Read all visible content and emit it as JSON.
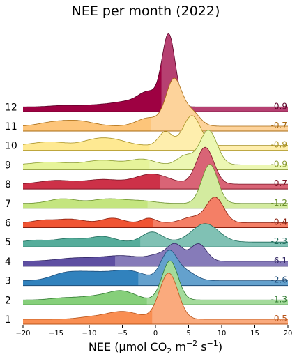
{
  "chart_data": {
    "type": "ridgeline",
    "title": "NEE per month (2022)",
    "xlabel": {
      "main": "NEE (μmol CO",
      "sub": "2",
      "mid": " m",
      "sup1": "−2",
      "mid2": " s",
      "sup2": "−1",
      "end": ")"
    },
    "xlim": [
      -20,
      20
    ],
    "xticks": [
      -20,
      -15,
      -10,
      -5,
      0,
      5,
      10,
      15,
      20
    ],
    "xtick_labels": [
      "−20",
      "−15",
      "−10",
      "−5",
      "0",
      "5",
      "10",
      "15",
      "20"
    ],
    "series": [
      {
        "month": "1",
        "median": -0.5,
        "median_label": "-0.5",
        "color": "#f98e52",
        "line": "#b8541a",
        "peaks": [
          [
            2.0,
            1.4,
            1.0
          ],
          [
            -5.0,
            2.5,
            0.17
          ],
          [
            -10.0,
            2.0,
            0.04
          ]
        ]
      },
      {
        "month": "2",
        "median": -1.3,
        "median_label": "-1.3",
        "color": "#86cf7a",
        "line": "#2f7a2f",
        "peaks": [
          [
            2.2,
            1.2,
            0.85
          ],
          [
            -5.0,
            2.0,
            0.18
          ],
          [
            -9.0,
            2.5,
            0.08
          ],
          [
            -14.0,
            2.0,
            0.04
          ]
        ]
      },
      {
        "month": "3",
        "median": -2.6,
        "median_label": "-2.6",
        "color": "#3182bd",
        "line": "#1f4e7a",
        "peaks": [
          [
            2.0,
            1.2,
            0.6
          ],
          [
            4.5,
            1.5,
            0.2
          ],
          [
            -4.0,
            2.5,
            0.2
          ],
          [
            -10.0,
            3.0,
            0.18
          ],
          [
            -14.0,
            2.0,
            0.1
          ]
        ]
      },
      {
        "month": "4",
        "median": -6.1,
        "median_label": "-6.1",
        "color": "#5e4fa2",
        "line": "#2e2360",
        "peaks": [
          [
            3.0,
            1.2,
            0.35
          ],
          [
            6.5,
            1.2,
            0.38
          ],
          [
            0.5,
            1.5,
            0.12
          ],
          [
            -5.0,
            3.0,
            0.12
          ],
          [
            -12.0,
            3.0,
            0.07
          ]
        ]
      },
      {
        "month": "5",
        "median": -2.3,
        "median_label": "-2.3",
        "color": "#56ad9b",
        "line": "#1e6b5a",
        "peaks": [
          [
            7.5,
            2.0,
            0.4
          ],
          [
            -0.5,
            1.5,
            0.22
          ],
          [
            -8.0,
            1.8,
            0.12
          ],
          [
            -13.0,
            2.0,
            0.08
          ],
          [
            -18.0,
            1.5,
            0.04
          ]
        ]
      },
      {
        "month": "6",
        "median": -0.4,
        "median_label": "-0.4",
        "color": "#f05433",
        "line": "#8a2010",
        "peaks": [
          [
            9.0,
            1.3,
            0.55
          ],
          [
            5.5,
            1.5,
            0.12
          ],
          [
            -1.0,
            1.0,
            0.1
          ],
          [
            -6.5,
            1.5,
            0.1
          ],
          [
            -13.0,
            2.0,
            0.08
          ],
          [
            -17.0,
            1.5,
            0.05
          ]
        ]
      },
      {
        "month": "7",
        "median": -1.2,
        "median_label": "-1.2",
        "color": "#c4e57f",
        "line": "#6a8f2a",
        "peaks": [
          [
            8.2,
            1.2,
            0.85
          ],
          [
            -7.0,
            2.5,
            0.1
          ],
          [
            -14.0,
            2.0,
            0.1
          ],
          [
            -2.0,
            2.0,
            0.05
          ]
        ]
      },
      {
        "month": "8",
        "median": 0.7,
        "median_label": "0.7",
        "color": "#cd3148",
        "line": "#7a1525",
        "peaks": [
          [
            7.5,
            1.3,
            0.8
          ],
          [
            -0.5,
            2.5,
            0.22
          ],
          [
            -8.0,
            2.5,
            0.1
          ],
          [
            -15.0,
            2.5,
            0.08
          ]
        ]
      },
      {
        "month": "9",
        "median": -0.9,
        "median_label": "-0.9",
        "color": "#e6f49a",
        "line": "#8a9a30",
        "peaks": [
          [
            8.0,
            1.3,
            0.75
          ],
          [
            4.5,
            1.2,
            0.2
          ],
          [
            -2.0,
            1.8,
            0.12
          ],
          [
            -8.0,
            2.5,
            0.1
          ],
          [
            -16.0,
            2.5,
            0.06
          ]
        ]
      },
      {
        "month": "10",
        "median": -0.9,
        "median_label": "-0.9",
        "color": "#fee992",
        "line": "#a89020",
        "peaks": [
          [
            5.5,
            1.3,
            0.65
          ],
          [
            1.5,
            1.0,
            0.3
          ],
          [
            -6.0,
            2.0,
            0.1
          ],
          [
            -9.0,
            2.0,
            0.12
          ],
          [
            -16.0,
            2.5,
            0.08
          ]
        ]
      },
      {
        "month": "11",
        "median": -0.7,
        "median_label": "-0.7",
        "color": "#fdc57a",
        "line": "#a86a10",
        "peaks": [
          [
            2.8,
            1.2,
            1.0
          ],
          [
            5.5,
            1.2,
            0.3
          ],
          [
            -1.0,
            1.8,
            0.18
          ],
          [
            -12.0,
            2.5,
            0.12
          ],
          [
            -16.0,
            2.0,
            0.06
          ]
        ]
      },
      {
        "month": "12",
        "median": 0.9,
        "median_label": "0.9",
        "color": "#9e0142",
        "line": "#5a0025",
        "peaks": [
          [
            2.0,
            1.0,
            1.55
          ],
          [
            -1.0,
            1.5,
            0.3
          ],
          [
            -4.0,
            2.0,
            0.1
          ],
          [
            -8.0,
            2.5,
            0.05
          ],
          [
            -14.0,
            2.0,
            0.03
          ]
        ]
      }
    ]
  }
}
